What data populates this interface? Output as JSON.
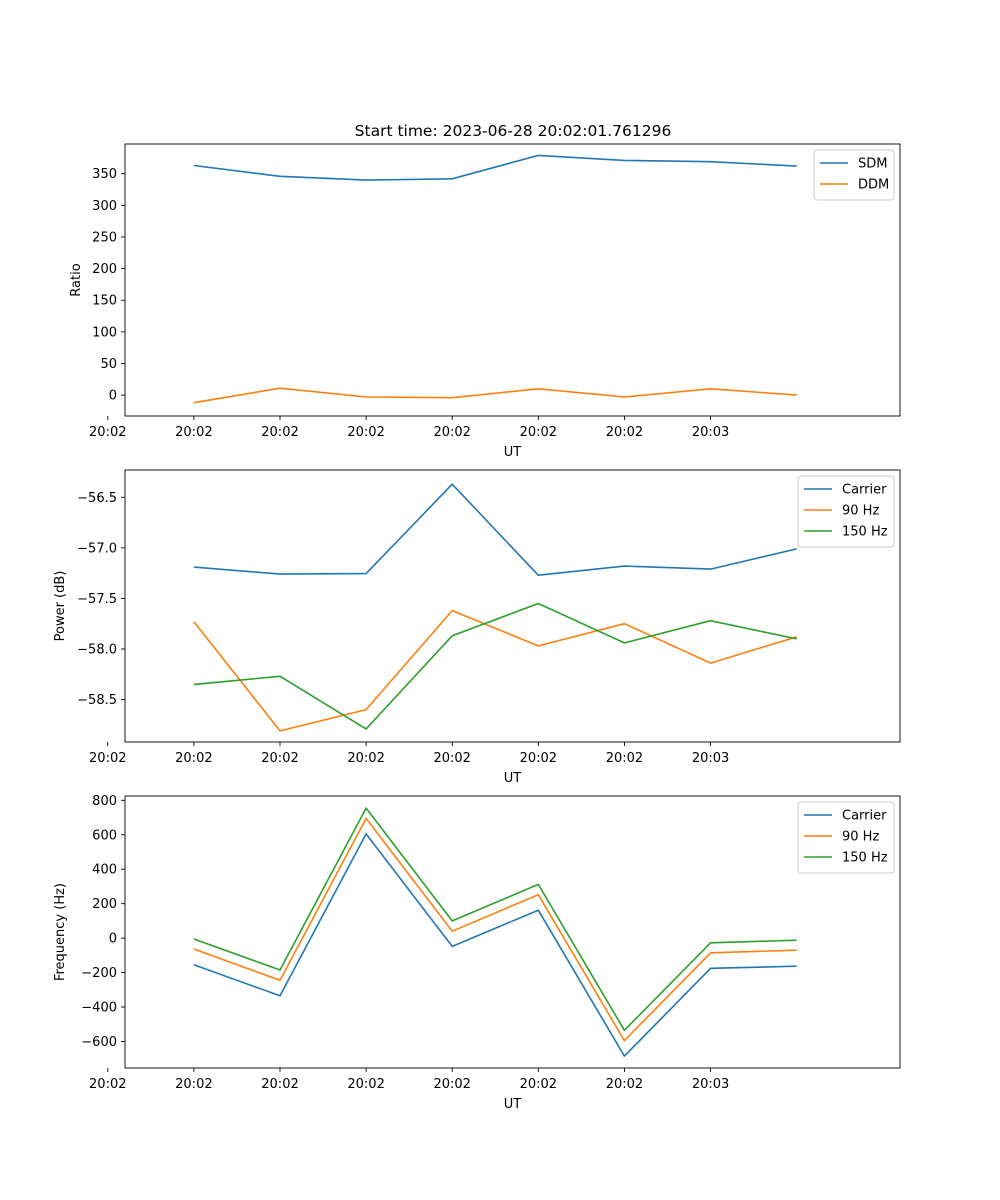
{
  "figure": {
    "title": "Start time: 2023-06-28 20:02:01.761296"
  },
  "chart_data": [
    {
      "type": "line",
      "xlabel": "UT",
      "ylabel": "Ratio",
      "xticks": [
        "20:02",
        "20:02",
        "20:02",
        "20:02",
        "20:02",
        "20:02",
        "20:02",
        "20:03"
      ],
      "x": [
        1,
        2,
        3,
        4,
        5,
        6,
        7,
        8
      ],
      "xlim": [
        0.2,
        9.2
      ],
      "ylim": [
        -33,
        397
      ],
      "yticks": [
        0,
        50,
        100,
        150,
        200,
        250,
        300,
        350
      ],
      "grid": false,
      "legend": "top-right",
      "series": [
        {
          "name": "SDM",
          "color": "#1f77b4",
          "values": [
            363,
            346,
            340,
            342,
            379,
            371,
            369,
            362
          ]
        },
        {
          "name": "DDM",
          "color": "#ff7f0e",
          "values": [
            -12,
            11,
            -3,
            -4,
            10,
            -3,
            10,
            0
          ]
        }
      ]
    },
    {
      "type": "line",
      "xlabel": "UT",
      "ylabel": "Power (dB)",
      "xticks": [
        "20:02",
        "20:02",
        "20:02",
        "20:02",
        "20:02",
        "20:02",
        "20:02",
        "20:03"
      ],
      "x": [
        1,
        2,
        3,
        4,
        5,
        6,
        7,
        8
      ],
      "xlim": [
        0.2,
        9.2
      ],
      "ylim": [
        -58.92,
        -56.23
      ],
      "yticks": [
        -58.5,
        -58.0,
        -57.5,
        -57.0,
        -56.5
      ],
      "ytick_labels": [
        "−58.5",
        "−58.0",
        "−57.5",
        "−57.0",
        "−56.5"
      ],
      "grid": false,
      "legend": "top-right",
      "series": [
        {
          "name": "Carrier",
          "color": "#1f77b4",
          "values": [
            -57.19,
            -57.26,
            -57.255,
            -56.37,
            -57.27,
            -57.18,
            -57.21,
            -57.01
          ]
        },
        {
          "name": "90 Hz",
          "color": "#ff7f0e",
          "values": [
            -57.73,
            -58.81,
            -58.6,
            -57.62,
            -57.97,
            -57.75,
            -58.14,
            -57.88
          ]
        },
        {
          "name": "150 Hz",
          "color": "#2ca02c",
          "values": [
            -58.35,
            -58.27,
            -58.79,
            -57.87,
            -57.55,
            -57.94,
            -57.72,
            -57.9
          ]
        }
      ]
    },
    {
      "type": "line",
      "xlabel": "UT",
      "ylabel": "Frequency (Hz)",
      "xticks": [
        "20:02",
        "20:02",
        "20:02",
        "20:02",
        "20:02",
        "20:02",
        "20:02",
        "20:03"
      ],
      "x": [
        1,
        2,
        3,
        4,
        5,
        6,
        7,
        8
      ],
      "xlim": [
        0.2,
        9.2
      ],
      "ylim": [
        -754,
        825
      ],
      "yticks": [
        -600,
        -400,
        -200,
        0,
        200,
        400,
        600,
        800
      ],
      "ytick_labels": [
        "−600",
        "−400",
        "−200",
        "0",
        "200",
        "400",
        "600",
        "800"
      ],
      "grid": false,
      "legend": "top-right",
      "series": [
        {
          "name": "Carrier",
          "color": "#1f77b4",
          "values": [
            -155,
            -335,
            605,
            -48,
            162,
            -685,
            -175,
            -163
          ]
        },
        {
          "name": "90 Hz",
          "color": "#ff7f0e",
          "values": [
            -63,
            -245,
            695,
            40,
            252,
            -595,
            -85,
            -70
          ]
        },
        {
          "name": "150 Hz",
          "color": "#2ca02c",
          "values": [
            -5,
            -185,
            755,
            100,
            312,
            -535,
            -27,
            -12
          ]
        }
      ]
    }
  ]
}
